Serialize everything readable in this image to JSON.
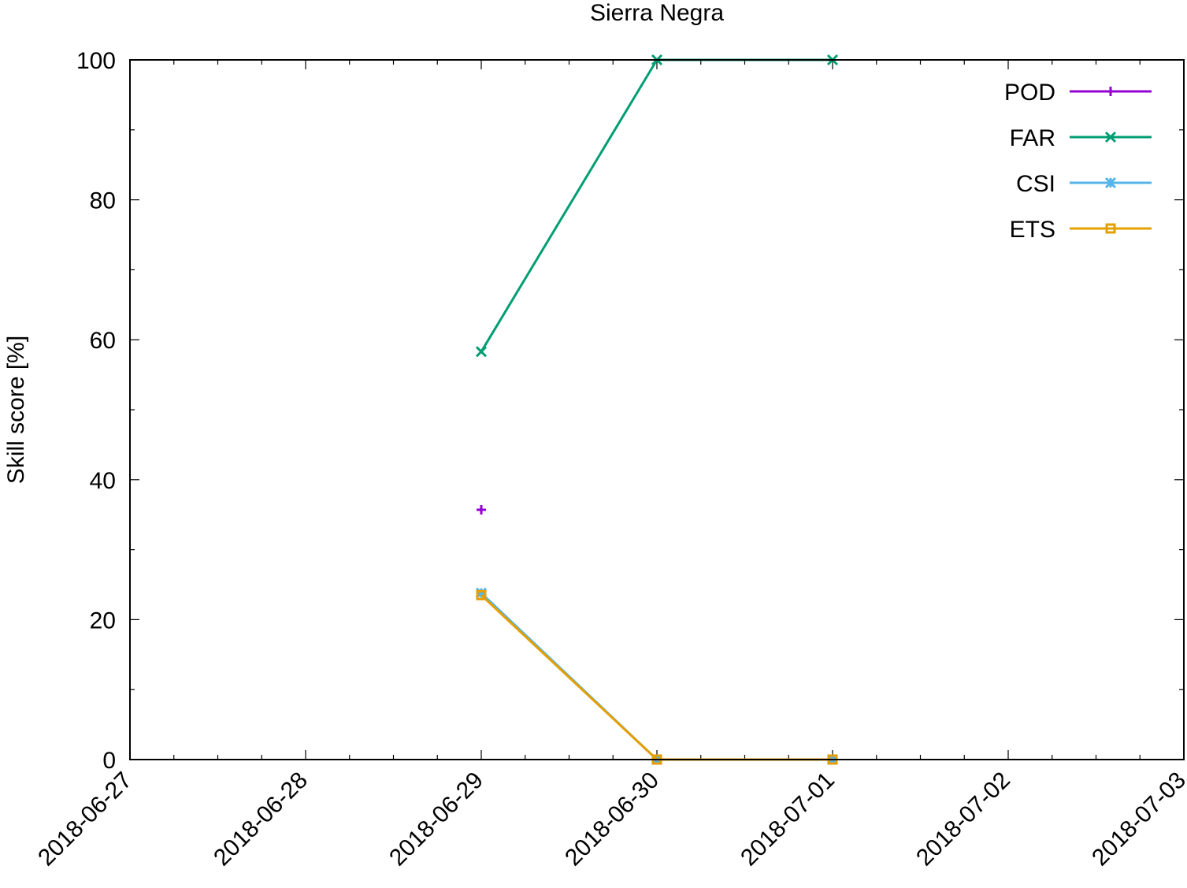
{
  "chart_data": {
    "type": "line",
    "title": "Sierra Negra",
    "xlabel": "",
    "ylabel": "Skill score [%]",
    "x_ticks": [
      "2018-06-27",
      "2018-06-28",
      "2018-06-29",
      "2018-06-30",
      "2018-07-01",
      "2018-07-02",
      "2018-07-03"
    ],
    "xlim": [
      "2018-06-27",
      "2018-07-03"
    ],
    "ylim": [
      0,
      100
    ],
    "y_ticks": [
      0,
      20,
      40,
      60,
      80,
      100
    ],
    "grid": false,
    "legend_position": "top-right",
    "series": [
      {
        "name": "POD",
        "color": "#9400d3",
        "marker": "plus",
        "x": [
          "2018-06-29"
        ],
        "values": [
          35.7
        ]
      },
      {
        "name": "FAR",
        "color": "#009e73",
        "marker": "cross",
        "x": [
          "2018-06-29",
          "2018-06-30",
          "2018-07-01"
        ],
        "values": [
          58.3,
          100,
          100
        ]
      },
      {
        "name": "CSI",
        "color": "#56b4e9",
        "marker": "star",
        "x": [
          "2018-06-29",
          "2018-06-30",
          "2018-07-01"
        ],
        "values": [
          23.8,
          0,
          0
        ]
      },
      {
        "name": "ETS",
        "color": "#e69f00",
        "marker": "square",
        "x": [
          "2018-06-29",
          "2018-06-30",
          "2018-07-01"
        ],
        "values": [
          23.5,
          0,
          0
        ]
      }
    ]
  }
}
